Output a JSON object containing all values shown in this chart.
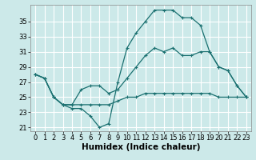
{
  "xlabel": "Humidex (Indice chaleur)",
  "background_color": "#cce9e9",
  "grid_color": "#ffffff",
  "line_color": "#1a7070",
  "xlim": [
    -0.5,
    23.5
  ],
  "ylim": [
    20.5,
    37.2
  ],
  "xticks": [
    0,
    1,
    2,
    3,
    4,
    5,
    6,
    7,
    8,
    9,
    10,
    11,
    12,
    13,
    14,
    15,
    16,
    17,
    18,
    19,
    20,
    21,
    22,
    23
  ],
  "yticks": [
    21,
    23,
    25,
    27,
    29,
    31,
    33,
    35
  ],
  "line1_x": [
    0,
    1,
    2,
    3,
    4,
    5,
    6,
    7,
    8,
    9,
    10,
    11,
    12,
    13,
    14,
    15,
    16,
    17,
    18,
    19,
    20,
    21,
    22,
    23
  ],
  "line1_y": [
    28.0,
    27.5,
    25.0,
    24.0,
    24.0,
    24.0,
    24.0,
    24.0,
    24.0,
    24.5,
    25.0,
    25.0,
    25.5,
    25.5,
    25.5,
    25.5,
    25.5,
    25.5,
    25.5,
    25.5,
    25.0,
    25.0,
    25.0,
    25.0
  ],
  "line2_x": [
    0,
    1,
    2,
    3,
    4,
    5,
    6,
    7,
    8,
    9,
    10,
    11,
    12,
    13,
    14,
    15,
    16,
    17,
    18,
    19,
    20,
    21,
    22,
    23
  ],
  "line2_y": [
    28.0,
    27.5,
    25.0,
    24.0,
    24.0,
    26.0,
    26.5,
    26.5,
    25.5,
    26.0,
    27.5,
    29.0,
    30.5,
    31.5,
    31.0,
    31.5,
    30.5,
    30.5,
    31.0,
    31.0,
    29.0,
    28.5,
    26.5,
    25.0
  ],
  "line3_x": [
    0,
    1,
    2,
    3,
    4,
    5,
    6,
    7,
    8,
    9,
    10,
    11,
    12,
    13,
    14,
    15,
    16,
    17,
    18,
    19,
    20,
    21,
    22,
    23
  ],
  "line3_y": [
    28.0,
    27.5,
    25.0,
    24.0,
    23.5,
    23.5,
    22.5,
    21.0,
    21.5,
    27.0,
    31.5,
    33.5,
    35.0,
    36.5,
    36.5,
    36.5,
    35.5,
    35.5,
    34.5,
    31.0,
    29.0,
    28.5,
    26.5,
    25.0
  ],
  "marker": "+",
  "marker_size": 3,
  "linewidth": 0.9,
  "xlabel_fontsize": 7.5,
  "tick_fontsize": 6
}
